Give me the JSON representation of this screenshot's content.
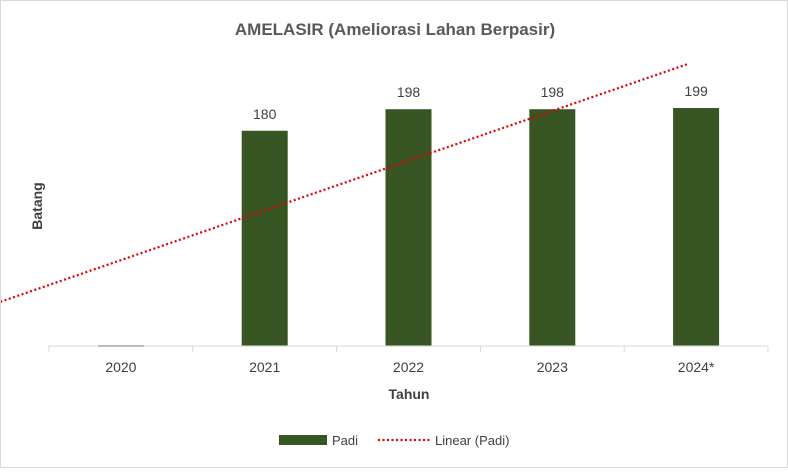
{
  "colors": {
    "bar": "#375623",
    "trend": "#e00000",
    "text": "#404040",
    "axis": "#d9d9d9"
  },
  "chart_data": {
    "type": "bar",
    "title": "AMELASIR (Ameliorasi Lahan Berpasir)",
    "xlabel": "Tahun",
    "ylabel": "Batang",
    "categories": [
      "2020",
      "2021",
      "2022",
      "2023",
      "2024*"
    ],
    "series": [
      {
        "name": "Padi",
        "values": [
          0,
          180,
          198,
          198,
          199
        ],
        "data_labels": [
          "",
          "180",
          "198",
          "198",
          "199"
        ]
      }
    ],
    "trendline": {
      "name": "Linear (Padi)",
      "type": "linear",
      "style": "dotted"
    },
    "ylim": [
      0,
      240
    ],
    "grid": false,
    "legend": "bottom"
  }
}
